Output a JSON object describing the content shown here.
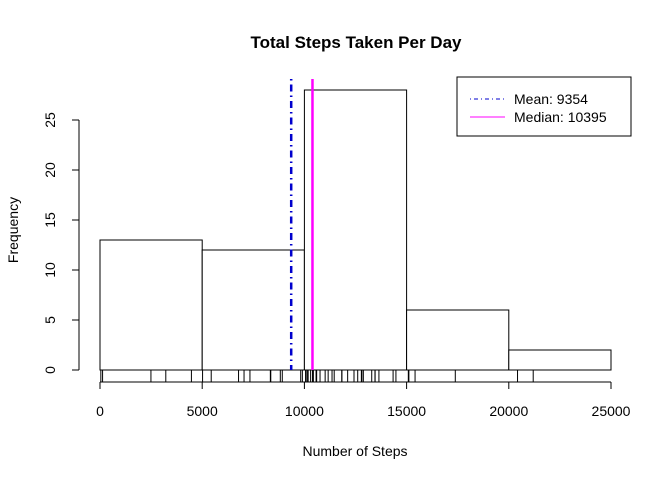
{
  "chart_data": {
    "type": "bar",
    "title": "Total Steps Taken Per Day",
    "xlabel": "Number of Steps",
    "ylabel": "Frequency",
    "bins": [
      {
        "start": 0,
        "end": 5000,
        "count": 13
      },
      {
        "start": 5000,
        "end": 10000,
        "count": 12
      },
      {
        "start": 10000,
        "end": 15000,
        "count": 28
      },
      {
        "start": 15000,
        "end": 20000,
        "count": 6
      },
      {
        "start": 20000,
        "end": 25000,
        "count": 2
      }
    ],
    "xlim": [
      0,
      25000
    ],
    "ylim": [
      0,
      28
    ],
    "x_ticks": [
      0,
      5000,
      10000,
      15000,
      20000,
      25000
    ],
    "y_ticks": [
      0,
      5,
      10,
      15,
      20,
      25
    ],
    "grid": false,
    "rug": [
      41,
      126,
      2492,
      3219,
      4472,
      5018,
      5441,
      6778,
      7047,
      7336,
      8334,
      8355,
      8821,
      8918,
      9819,
      9900,
      10056,
      10119,
      10139,
      10183,
      10304,
      10395,
      10439,
      10571,
      10600,
      10765,
      11015,
      11162,
      11352,
      11458,
      11829,
      11834,
      12116,
      12426,
      12608,
      12787,
      12811,
      12883,
      13294,
      13452,
      13460,
      13646,
      14339,
      14478,
      15084,
      15098,
      15110,
      15414,
      17382,
      20427,
      21194
    ],
    "reference_lines": [
      {
        "name": "Mean",
        "value": 9354,
        "color": "#0000CD",
        "style": "dotdash"
      },
      {
        "name": "Median",
        "value": 10395,
        "color": "#FF00FF",
        "style": "solid"
      }
    ],
    "legend": {
      "position": "top-right",
      "items": [
        {
          "label": "Mean:  9354",
          "color": "#0000CD",
          "style": "dotdash"
        },
        {
          "label": "Median:  10395",
          "color": "#FF00FF",
          "style": "solid"
        }
      ]
    }
  }
}
